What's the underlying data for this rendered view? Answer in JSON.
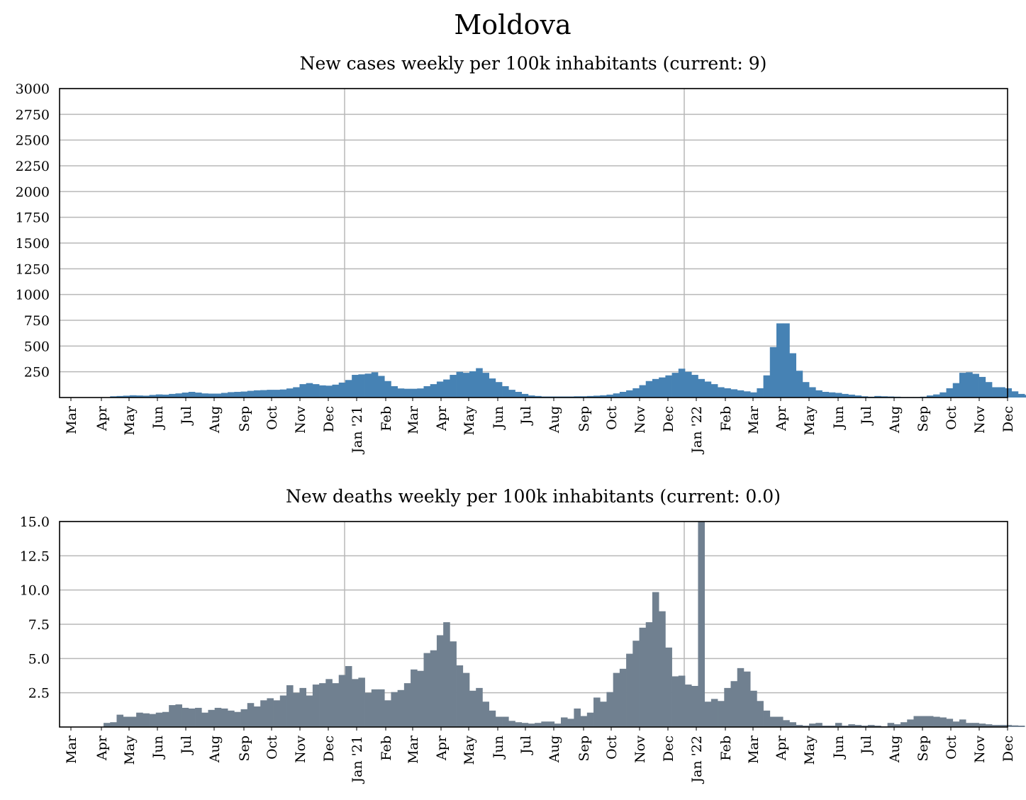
{
  "title": "Moldova",
  "colors": {
    "cases": "#4682b4",
    "deaths": "#708090",
    "grid": "#b8b8b8"
  },
  "chart_data": [
    {
      "type": "bar",
      "title": "New cases weekly per 100k inhabitants (current: 9)",
      "ylim": [
        0,
        3000
      ],
      "y_ticks": [
        "250",
        "500",
        "750",
        "1000",
        "1250",
        "1500",
        "1750",
        "2000",
        "2250",
        "2500",
        "2750",
        "3000"
      ],
      "x_ticks": [
        "Mar",
        "Apr",
        "May",
        "Jun",
        "Jul",
        "Aug",
        "Sep",
        "Oct",
        "Nov",
        "Dec",
        "Jan '21",
        "Feb",
        "Mar",
        "Apr",
        "May",
        "Jun",
        "Jul",
        "Aug",
        "Sep",
        "Oct",
        "Nov",
        "Dec",
        "Jan '22",
        "Feb",
        "Mar",
        "Apr",
        "May",
        "Jun",
        "Jul",
        "Aug",
        "Sep",
        "Oct",
        "Nov",
        "Dec"
      ],
      "grid": true,
      "bar_width_weeks": 1,
      "values": [
        0,
        0,
        0,
        0,
        0,
        0,
        12,
        15,
        18,
        22,
        20,
        18,
        25,
        30,
        28,
        35,
        40,
        48,
        55,
        48,
        40,
        38,
        38,
        45,
        52,
        55,
        58,
        65,
        70,
        72,
        75,
        75,
        78,
        88,
        100,
        130,
        140,
        130,
        118,
        115,
        125,
        145,
        170,
        220,
        225,
        232,
        245,
        210,
        160,
        110,
        88,
        85,
        85,
        88,
        110,
        130,
        155,
        175,
        220,
        250,
        240,
        255,
        285,
        240,
        185,
        150,
        110,
        75,
        55,
        35,
        20,
        15,
        10,
        10,
        10,
        10,
        10,
        12,
        12,
        15,
        18,
        22,
        28,
        40,
        55,
        70,
        90,
        120,
        160,
        180,
        195,
        215,
        240,
        280,
        250,
        220,
        180,
        155,
        130,
        100,
        90,
        80,
        70,
        60,
        50,
        90,
        215,
        490,
        720,
        720,
        430,
        260,
        150,
        100,
        70,
        55,
        50,
        45,
        35,
        28,
        20,
        12,
        8,
        15,
        12,
        10,
        8,
        5,
        5,
        5,
        8,
        20,
        30,
        50,
        90,
        140,
        240,
        245,
        230,
        200,
        150,
        100,
        100,
        90,
        60,
        35,
        25,
        20,
        15,
        12,
        10,
        8,
        10,
        10,
        9
      ]
    },
    {
      "type": "bar",
      "title": "New deaths weekly per 100k inhabitants (current: 0.0)",
      "ylim": [
        0,
        15
      ],
      "y_ticks": [
        "2.5",
        "5.0",
        "7.5",
        "10.0",
        "12.5",
        "15.0"
      ],
      "x_ticks": [
        "Mar",
        "Apr",
        "May",
        "Jun",
        "Jul",
        "Aug",
        "Sep",
        "Oct",
        "Nov",
        "Dec",
        "Jan '21",
        "Feb",
        "Mar",
        "Apr",
        "May",
        "Jun",
        "Jul",
        "Aug",
        "Sep",
        "Oct",
        "Nov",
        "Dec",
        "Jan '22",
        "Feb",
        "Mar",
        "Apr",
        "May",
        "Jun",
        "Jul",
        "Aug",
        "Sep",
        "Oct",
        "Nov",
        "Dec"
      ],
      "grid": true,
      "bar_width_weeks": 1,
      "values": [
        0,
        0,
        0,
        0,
        0,
        0.3,
        0.35,
        0.9,
        0.75,
        0.75,
        1.05,
        1.0,
        0.95,
        1.05,
        1.1,
        1.6,
        1.65,
        1.4,
        1.35,
        1.4,
        1.05,
        1.25,
        1.4,
        1.35,
        1.2,
        1.1,
        1.3,
        1.75,
        1.5,
        1.95,
        2.1,
        1.95,
        2.3,
        3.05,
        2.5,
        2.85,
        2.3,
        3.1,
        3.2,
        3.5,
        3.2,
        3.8,
        4.45,
        3.5,
        3.6,
        2.5,
        2.75,
        2.75,
        1.95,
        2.55,
        2.7,
        3.2,
        4.2,
        4.1,
        5.4,
        5.6,
        6.7,
        7.65,
        6.25,
        4.5,
        3.95,
        2.65,
        2.85,
        1.85,
        1.2,
        0.75,
        0.75,
        0.45,
        0.35,
        0.3,
        0.25,
        0.3,
        0.4,
        0.4,
        0.25,
        0.7,
        0.6,
        1.35,
        0.8,
        1.05,
        2.15,
        1.85,
        2.55,
        3.95,
        4.25,
        5.35,
        6.3,
        7.25,
        7.65,
        9.85,
        8.45,
        5.8,
        3.7,
        3.75,
        3.1,
        3.0,
        15.0,
        1.85,
        2.05,
        1.9,
        2.85,
        3.35,
        4.3,
        4.05,
        2.65,
        1.9,
        1.2,
        0.75,
        0.75,
        0.5,
        0.35,
        0.15,
        0.1,
        0.25,
        0.3,
        0.1,
        0.1,
        0.3,
        0.1,
        0.2,
        0.15,
        0.1,
        0.15,
        0.1,
        0.05,
        0.3,
        0.2,
        0.35,
        0.55,
        0.8,
        0.8,
        0.8,
        0.75,
        0.7,
        0.6,
        0.4,
        0.55,
        0.3,
        0.3,
        0.25,
        0.2,
        0.15,
        0.15,
        0.15,
        0.12,
        0.1,
        0.0
      ]
    }
  ]
}
